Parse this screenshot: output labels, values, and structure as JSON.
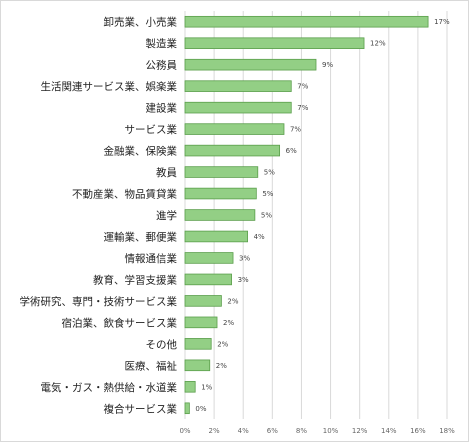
{
  "chart_data": {
    "type": "bar",
    "orientation": "horizontal",
    "categories": [
      "卸売業、小売業",
      "製造業",
      "公務員",
      "生活関連サービス業、娯楽業",
      "建設業",
      "サービス業",
      "金融業、保険業",
      "教員",
      "不動産業、物品賃貸業",
      "進学",
      "運輸業、郵便業",
      "情報通信業",
      "教育、学習支援業",
      "学術研究、専門・技術サービス業",
      "宿泊業、飲食サービス業",
      "その他",
      "医療、福祉",
      "電気・ガス・熱供給・水道業",
      "複合サービス業"
    ],
    "values": [
      16.7,
      12.3,
      9.0,
      7.3,
      7.3,
      6.8,
      6.5,
      5.0,
      4.9,
      4.8,
      4.3,
      3.3,
      3.2,
      2.5,
      2.2,
      1.8,
      1.7,
      0.7,
      0.3
    ],
    "value_labels": [
      "17%",
      "12%",
      "9%",
      "7%",
      "7%",
      "7%",
      "6%",
      "5%",
      "5%",
      "5%",
      "4%",
      "3%",
      "3%",
      "2%",
      "2%",
      "2%",
      "2%",
      "1%",
      "0%"
    ],
    "x_ticks": [
      0,
      2,
      4,
      6,
      8,
      10,
      12,
      14,
      16,
      18
    ],
    "x_tick_labels": [
      "0%",
      "2%",
      "4%",
      "6%",
      "8%",
      "10%",
      "12%",
      "14%",
      "16%",
      "18%"
    ],
    "xlim": [
      0,
      18
    ],
    "title": "",
    "xlabel": "",
    "ylabel": "",
    "grid": true,
    "legend": "none",
    "bar_color": "#93cf85",
    "bar_edge_color": "#5a9e4b",
    "grid_color": "#d9d9d9"
  }
}
